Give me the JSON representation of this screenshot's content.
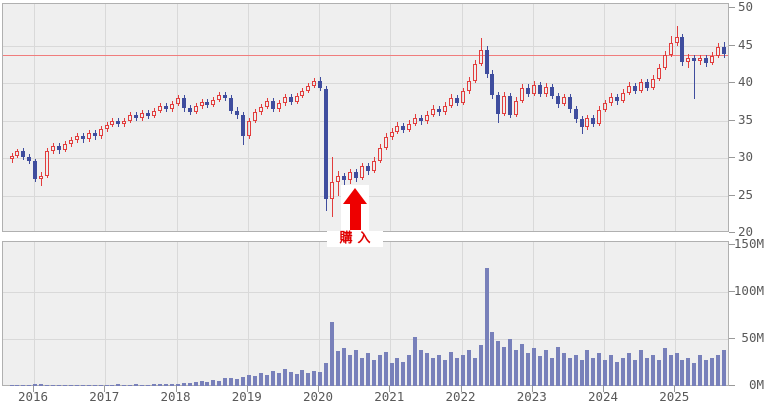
{
  "chart_data": {
    "type": "candlestick",
    "subtype": "price-with-volume",
    "frequency": "monthly",
    "x_start": "2015-09",
    "years": [
      "2016",
      "2017",
      "2018",
      "2019",
      "2020",
      "2021",
      "2022",
      "2023",
      "2024",
      "2025"
    ],
    "price_axis": {
      "ticks": [
        50,
        45,
        40,
        35,
        30,
        25,
        20
      ],
      "min": 20,
      "max": 50,
      "grid": true,
      "side": "right"
    },
    "volume_axis": {
      "tick_labels": [
        "150M",
        "100M",
        "50M",
        "0M"
      ],
      "tick_values": [
        150,
        100,
        50,
        0
      ],
      "max": 150,
      "side": "right"
    },
    "reference_line": {
      "value": 43.7,
      "color": "#f07d7d"
    },
    "annotation": {
      "label": "購入",
      "month_index": 58,
      "arrow": "up",
      "color": "#e00000"
    },
    "colors": {
      "up": "#e23d3d",
      "down": "#3f4d9e",
      "volume": "#7880ba",
      "panel_bg": "#efefef",
      "grid": "#d9d9d9",
      "border": "#b0b0b0",
      "axis_text": "#595959",
      "arrow": "#ee0000"
    },
    "candles": [
      [
        29.9,
        30.7,
        29.4,
        30.3
      ],
      [
        30.3,
        31.2,
        30.0,
        30.9
      ],
      [
        30.9,
        31.3,
        29.8,
        30.2
      ],
      [
        30.2,
        30.6,
        29.2,
        29.6
      ],
      [
        29.6,
        29.9,
        26.8,
        27.2
      ],
      [
        27.2,
        28.1,
        26.3,
        27.6
      ],
      [
        27.6,
        31.3,
        27.3,
        30.9
      ],
      [
        30.9,
        32.0,
        30.5,
        31.6
      ],
      [
        31.6,
        32.0,
        30.6,
        31.1
      ],
      [
        31.1,
        32.3,
        30.8,
        31.9
      ],
      [
        31.9,
        32.8,
        31.5,
        32.4
      ],
      [
        32.4,
        33.3,
        32.0,
        32.9
      ],
      [
        32.9,
        33.3,
        32.0,
        32.5
      ],
      [
        32.5,
        33.8,
        32.2,
        33.4
      ],
      [
        33.4,
        33.8,
        32.4,
        32.9
      ],
      [
        32.9,
        34.3,
        32.6,
        33.9
      ],
      [
        33.9,
        34.8,
        33.5,
        34.4
      ],
      [
        34.4,
        35.3,
        34.1,
        34.9
      ],
      [
        34.9,
        35.3,
        34.1,
        34.5
      ],
      [
        34.5,
        35.4,
        34.2,
        35.0
      ],
      [
        35.0,
        36.1,
        34.7,
        35.7
      ],
      [
        35.7,
        36.1,
        34.9,
        35.3
      ],
      [
        35.3,
        36.4,
        35.0,
        36.0
      ],
      [
        36.0,
        36.4,
        35.2,
        35.6
      ],
      [
        35.6,
        36.7,
        35.3,
        36.3
      ],
      [
        36.3,
        37.3,
        36.0,
        36.9
      ],
      [
        36.9,
        37.3,
        36.1,
        36.5
      ],
      [
        36.5,
        37.6,
        36.2,
        37.2
      ],
      [
        37.2,
        38.4,
        36.9,
        38.0
      ],
      [
        38.0,
        38.4,
        36.2,
        36.7
      ],
      [
        36.7,
        37.1,
        35.7,
        36.2
      ],
      [
        36.2,
        37.3,
        35.9,
        36.9
      ],
      [
        36.9,
        37.9,
        36.6,
        37.5
      ],
      [
        37.5,
        37.9,
        36.7,
        37.1
      ],
      [
        37.1,
        38.2,
        36.8,
        37.8
      ],
      [
        37.8,
        38.8,
        37.5,
        38.4
      ],
      [
        38.4,
        38.8,
        37.6,
        38.0
      ],
      [
        38.0,
        38.4,
        35.9,
        36.3
      ],
      [
        36.3,
        36.8,
        35.2,
        35.7
      ],
      [
        35.7,
        36.1,
        31.8,
        32.9
      ],
      [
        32.9,
        35.4,
        32.6,
        35.0
      ],
      [
        35.0,
        36.5,
        34.7,
        36.1
      ],
      [
        36.1,
        37.2,
        35.8,
        36.8
      ],
      [
        36.8,
        38.0,
        36.5,
        37.6
      ],
      [
        37.6,
        38.0,
        36.1,
        36.5
      ],
      [
        36.5,
        37.7,
        36.2,
        37.3
      ],
      [
        37.3,
        38.5,
        37.0,
        38.1
      ],
      [
        38.1,
        38.5,
        37.1,
        37.5
      ],
      [
        37.5,
        38.7,
        37.2,
        38.3
      ],
      [
        38.3,
        39.4,
        38.0,
        39.0
      ],
      [
        39.0,
        40.0,
        38.7,
        39.6
      ],
      [
        39.6,
        40.7,
        39.3,
        40.3
      ],
      [
        40.3,
        40.8,
        39.0,
        39.4
      ],
      [
        39.2,
        39.6,
        23.0,
        24.6
      ],
      [
        24.6,
        30.2,
        22.2,
        26.8
      ],
      [
        26.8,
        28.3,
        24.9,
        27.6
      ],
      [
        27.6,
        28.0,
        26.2,
        27.1
      ],
      [
        27.1,
        28.6,
        26.5,
        28.1
      ],
      [
        28.1,
        28.5,
        26.8,
        27.4
      ],
      [
        27.4,
        29.4,
        27.1,
        28.9
      ],
      [
        28.9,
        29.3,
        27.7,
        28.3
      ],
      [
        28.3,
        30.1,
        28.0,
        29.6
      ],
      [
        29.6,
        31.9,
        29.3,
        31.4
      ],
      [
        31.4,
        33.3,
        31.1,
        32.8
      ],
      [
        32.8,
        34.0,
        32.4,
        33.5
      ],
      [
        33.5,
        34.8,
        33.2,
        34.3
      ],
      [
        34.3,
        34.7,
        33.3,
        33.8
      ],
      [
        33.8,
        35.1,
        33.5,
        34.6
      ],
      [
        34.6,
        35.9,
        34.3,
        35.4
      ],
      [
        35.4,
        35.8,
        34.4,
        34.9
      ],
      [
        34.9,
        36.3,
        34.6,
        35.8
      ],
      [
        35.8,
        37.1,
        35.5,
        36.6
      ],
      [
        36.6,
        37.0,
        35.6,
        36.1
      ],
      [
        36.1,
        37.5,
        35.8,
        37.0
      ],
      [
        37.0,
        38.5,
        36.7,
        38.0
      ],
      [
        38.0,
        38.4,
        36.9,
        37.4
      ],
      [
        37.4,
        39.4,
        37.1,
        38.9
      ],
      [
        38.9,
        40.8,
        38.6,
        40.3
      ],
      [
        40.3,
        43.1,
        40.0,
        42.6
      ],
      [
        42.6,
        46.0,
        42.3,
        44.4
      ],
      [
        44.4,
        45.0,
        40.7,
        41.2
      ],
      [
        41.2,
        41.7,
        37.9,
        38.4
      ],
      [
        38.4,
        38.8,
        34.7,
        35.9
      ],
      [
        35.9,
        38.8,
        35.6,
        38.3
      ],
      [
        38.3,
        38.7,
        35.3,
        35.8
      ],
      [
        35.8,
        38.1,
        35.5,
        37.6
      ],
      [
        37.6,
        39.9,
        37.3,
        39.4
      ],
      [
        39.4,
        39.9,
        38.1,
        38.6
      ],
      [
        38.6,
        40.3,
        38.3,
        39.8
      ],
      [
        39.8,
        40.2,
        38.1,
        38.5
      ],
      [
        38.5,
        40.0,
        38.2,
        39.5
      ],
      [
        39.5,
        39.9,
        37.9,
        38.3
      ],
      [
        38.3,
        38.7,
        36.7,
        37.2
      ],
      [
        37.2,
        38.6,
        36.9,
        38.1
      ],
      [
        38.1,
        38.5,
        36.0,
        36.5
      ],
      [
        36.5,
        36.9,
        34.7,
        35.2
      ],
      [
        35.2,
        35.6,
        33.2,
        34.1
      ],
      [
        34.1,
        35.8,
        33.8,
        35.3
      ],
      [
        35.3,
        35.7,
        34.1,
        34.6
      ],
      [
        34.6,
        36.9,
        34.3,
        36.4
      ],
      [
        36.4,
        37.8,
        36.1,
        37.3
      ],
      [
        37.3,
        38.7,
        37.0,
        38.2
      ],
      [
        38.2,
        38.6,
        37.1,
        37.6
      ],
      [
        37.6,
        39.2,
        37.3,
        38.7
      ],
      [
        38.7,
        40.1,
        38.4,
        39.6
      ],
      [
        39.6,
        40.0,
        38.5,
        39.0
      ],
      [
        39.0,
        40.6,
        38.7,
        40.1
      ],
      [
        40.1,
        40.5,
        38.9,
        39.4
      ],
      [
        39.4,
        41.1,
        39.1,
        40.6
      ],
      [
        40.6,
        42.5,
        40.3,
        42.0
      ],
      [
        42.0,
        44.3,
        41.7,
        43.8
      ],
      [
        43.8,
        46.3,
        43.5,
        45.3
      ],
      [
        45.3,
        47.6,
        44.9,
        46.2
      ],
      [
        46.2,
        46.6,
        42.3,
        42.8
      ],
      [
        42.8,
        43.9,
        42.0,
        43.4
      ],
      [
        43.4,
        43.8,
        37.9,
        42.9
      ],
      [
        42.9,
        43.8,
        42.4,
        43.3
      ],
      [
        43.3,
        43.7,
        42.1,
        42.7
      ],
      [
        42.7,
        44.1,
        42.4,
        43.6
      ],
      [
        43.6,
        45.4,
        43.3,
        44.8
      ],
      [
        44.8,
        45.5,
        43.3,
        43.9
      ]
    ],
    "volumes": [
      1,
      1,
      1,
      1,
      2,
      2,
      1,
      1,
      1,
      1,
      1,
      1,
      1,
      1,
      1,
      1,
      1,
      1,
      2,
      1,
      1,
      2,
      1,
      1,
      2,
      2,
      2,
      2,
      2,
      3,
      3,
      4,
      5,
      4,
      6,
      5,
      8,
      9,
      7,
      10,
      12,
      11,
      14,
      12,
      16,
      14,
      18,
      15,
      13,
      17,
      14,
      16,
      15,
      24,
      68,
      37,
      40,
      33,
      38,
      30,
      35,
      28,
      33,
      36,
      25,
      30,
      26,
      33,
      52,
      38,
      35,
      30,
      33,
      28,
      36,
      30,
      33,
      38,
      30,
      44,
      126,
      57,
      48,
      42,
      50,
      38,
      45,
      35,
      40,
      32,
      38,
      30,
      42,
      35,
      30,
      33,
      28,
      38,
      30,
      35,
      28,
      33,
      26,
      30,
      35,
      28,
      38,
      30,
      33,
      28,
      40,
      33,
      35,
      28,
      30,
      25,
      33,
      28,
      30,
      33,
      38
    ]
  }
}
